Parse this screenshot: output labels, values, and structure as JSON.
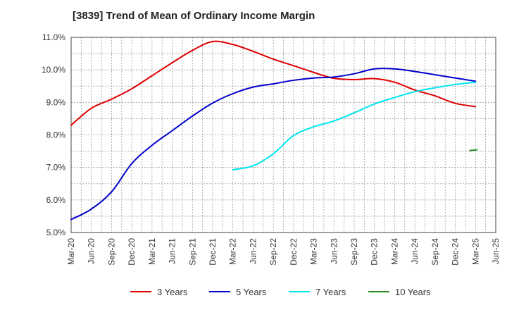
{
  "chart_data": {
    "type": "line",
    "title": "[3839]  Trend of Mean of Ordinary Income Margin",
    "xlabel": "",
    "ylabel": "",
    "x": [
      "Mar-20",
      "Jun-20",
      "Sep-20",
      "Dec-20",
      "Mar-21",
      "Jun-21",
      "Sep-21",
      "Dec-21",
      "Mar-22",
      "Jun-22",
      "Sep-22",
      "Dec-22",
      "Mar-23",
      "Jun-23",
      "Sep-23",
      "Dec-23",
      "Mar-24",
      "Jun-24",
      "Sep-24",
      "Dec-24",
      "Mar-25",
      "Jun-25"
    ],
    "ylim": [
      5.0,
      11.0
    ],
    "yticks": [
      "5.0%",
      "6.0%",
      "7.0%",
      "8.0%",
      "9.0%",
      "10.0%",
      "11.0%"
    ],
    "grid": true,
    "legend_position": "bottom",
    "series": [
      {
        "name": "3 Years",
        "color": "#e00000",
        "values": [
          8.3,
          8.82,
          9.1,
          9.42,
          9.82,
          10.22,
          10.6,
          10.87,
          10.78,
          10.57,
          10.33,
          10.13,
          9.92,
          9.74,
          9.7,
          9.73,
          9.62,
          9.38,
          9.2,
          8.97,
          8.87,
          null
        ]
      },
      {
        "name": "5 Years",
        "color": "#0000cc",
        "values": [
          5.4,
          5.72,
          6.25,
          7.12,
          7.68,
          8.13,
          8.58,
          8.98,
          9.27,
          9.47,
          9.57,
          9.68,
          9.75,
          9.78,
          9.88,
          10.03,
          10.03,
          9.95,
          9.85,
          9.75,
          9.65,
          null
        ]
      },
      {
        "name": "7 Years",
        "color": "#00e5ee",
        "values": [
          null,
          null,
          null,
          null,
          null,
          null,
          null,
          null,
          6.93,
          7.05,
          7.42,
          7.98,
          8.25,
          8.43,
          8.68,
          8.95,
          9.15,
          9.33,
          9.45,
          9.55,
          9.62,
          null
        ]
      },
      {
        "name": "10 Years",
        "color": "#228b22",
        "values": [
          null,
          null,
          null,
          null,
          null,
          null,
          null,
          null,
          null,
          null,
          null,
          null,
          null,
          null,
          null,
          null,
          null,
          null,
          null,
          null,
          7.53,
          null
        ]
      }
    ]
  }
}
